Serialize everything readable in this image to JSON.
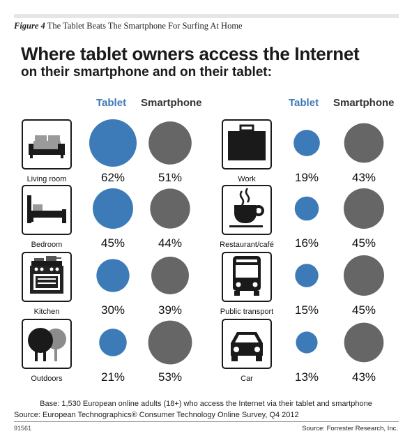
{
  "caption": {
    "figure_label": "Figure 4",
    "text": "The Tablet Beats The Smartphone For Surfing At Home"
  },
  "title_line1": "Where tablet owners access the Internet",
  "title_line2": "on their smartphone and on their tablet:",
  "colors": {
    "tablet": "#3d7ab8",
    "smartphone": "#666666"
  },
  "chart_data": {
    "type": "bubble",
    "series": [
      {
        "name": "Tablet",
        "values": [
          62,
          45,
          30,
          21,
          19,
          16,
          15,
          13
        ]
      },
      {
        "name": "Smartphone",
        "values": [
          51,
          44,
          39,
          53,
          43,
          45,
          45,
          43
        ]
      }
    ],
    "categories": [
      "Living room",
      "Bedroom",
      "Kitchen",
      "Outdoors",
      "Work",
      "Restaurant/café",
      "Public transport",
      "Car"
    ],
    "icons": [
      "sofa-icon",
      "bed-icon",
      "stove-icon",
      "trees-icon",
      "briefcase-icon",
      "coffee-cup-icon",
      "bus-icon",
      "car-icon"
    ],
    "value_labels": {
      "tablet": [
        "62%",
        "45%",
        "30%",
        "21%",
        "19%",
        "16%",
        "15%",
        "13%"
      ],
      "smartphone": [
        "51%",
        "44%",
        "39%",
        "53%",
        "43%",
        "45%",
        "45%",
        "43%"
      ]
    },
    "unit": "%",
    "layout": "two groups of four locations; circle area proportional to percentage"
  },
  "base_note": "Base: 1,530 European online adults (18+) who access the Internet via their tablet and smartphone",
  "source": "Source: European Technographics® Consumer Technology Online Survey, Q4 2012",
  "figure_number": "91561",
  "credit": "Source: Forrester Research, Inc."
}
